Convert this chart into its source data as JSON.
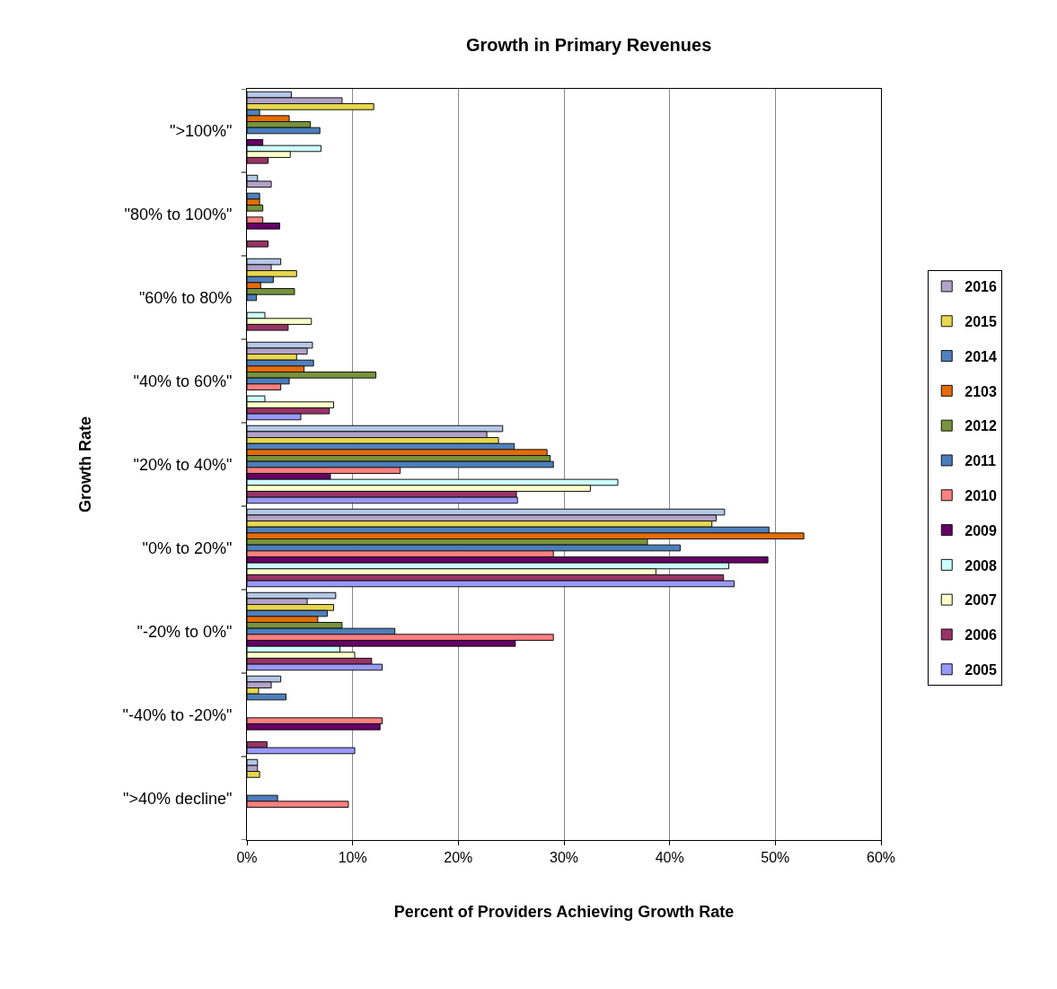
{
  "chart_data": {
    "type": "bar",
    "orientation": "horizontal",
    "title": "Growth in Primary Revenues",
    "xlabel": "Percent of Providers Achieving Growth Rate",
    "ylabel": "Growth Rate",
    "categories": [
      "\">100%\"",
      "\"80% to 100%\"",
      "\"60% to 80%",
      "\"40% to 60%\"",
      "\"20% to 40%\"",
      "\"0% to 20%\"",
      "\"-20% to 0%\"",
      "\"-40% to -20%\"",
      "\">40% decline\""
    ],
    "series": [
      {
        "color": "#b4c7e7",
        "values": [
          4.2,
          1.0,
          3.2,
          6.2,
          24.2,
          45.2,
          8.4,
          3.2,
          1.0
        ]
      },
      {
        "name": "2016",
        "color": "#b3a2c7",
        "values": [
          9.0,
          2.3,
          2.3,
          5.7,
          22.7,
          44.4,
          5.7,
          2.3,
          1.0
        ]
      },
      {
        "name": "2015",
        "color": "#e8d84e",
        "values": [
          12.0,
          null,
          4.7,
          4.7,
          23.8,
          44.0,
          8.2,
          1.1,
          1.2
        ]
      },
      {
        "name": "2014",
        "color": "#4f81bd",
        "values": [
          1.2,
          1.2,
          2.5,
          6.3,
          25.3,
          49.4,
          7.6,
          3.7,
          null
        ]
      },
      {
        "name": "2103",
        "color": "#e46c0a",
        "values": [
          4.0,
          1.2,
          1.3,
          5.4,
          28.4,
          52.7,
          6.7,
          null,
          null
        ]
      },
      {
        "name": "2012",
        "color": "#77933c",
        "values": [
          6.0,
          1.5,
          4.5,
          12.2,
          28.7,
          37.9,
          9.0,
          null,
          null
        ]
      },
      {
        "name": "2011",
        "color": "#4a7ebb",
        "values": [
          6.9,
          null,
          0.9,
          4.0,
          29.0,
          41.0,
          14.0,
          null,
          2.9
        ]
      },
      {
        "name": "2010",
        "color": "#ff8080",
        "values": [
          null,
          1.5,
          null,
          3.2,
          14.5,
          29.0,
          29.0,
          12.8,
          9.6
        ]
      },
      {
        "name": "2009",
        "color": "#660066",
        "values": [
          1.5,
          3.1,
          null,
          null,
          7.9,
          49.3,
          25.4,
          12.6,
          null
        ]
      },
      {
        "name": "2008",
        "color": "#ccffff",
        "values": [
          7.0,
          null,
          1.7,
          1.7,
          35.1,
          45.6,
          8.8,
          null,
          null
        ]
      },
      {
        "name": "2007",
        "color": "#ffffcc",
        "values": [
          4.1,
          null,
          6.1,
          8.2,
          32.5,
          38.7,
          10.2,
          null,
          null
        ]
      },
      {
        "name": "2006",
        "color": "#993366",
        "values": [
          2.0,
          2.0,
          3.9,
          7.8,
          25.5,
          45.1,
          11.8,
          1.9,
          null
        ]
      },
      {
        "name": "2005",
        "color": "#9999ff",
        "values": [
          null,
          null,
          null,
          5.1,
          25.6,
          46.1,
          12.8,
          10.2,
          null
        ]
      }
    ],
    "xlim": [
      0,
      60
    ],
    "xticks": [
      {
        "value": 0,
        "label": "0%"
      },
      {
        "value": 10,
        "label": "10%"
      },
      {
        "value": 20,
        "label": "20%"
      },
      {
        "value": 30,
        "label": "30%"
      },
      {
        "value": 40,
        "label": "40%"
      },
      {
        "value": 50,
        "label": "50%"
      },
      {
        "value": 60,
        "label": "60%"
      }
    ],
    "grid": "x",
    "legend": "right"
  }
}
